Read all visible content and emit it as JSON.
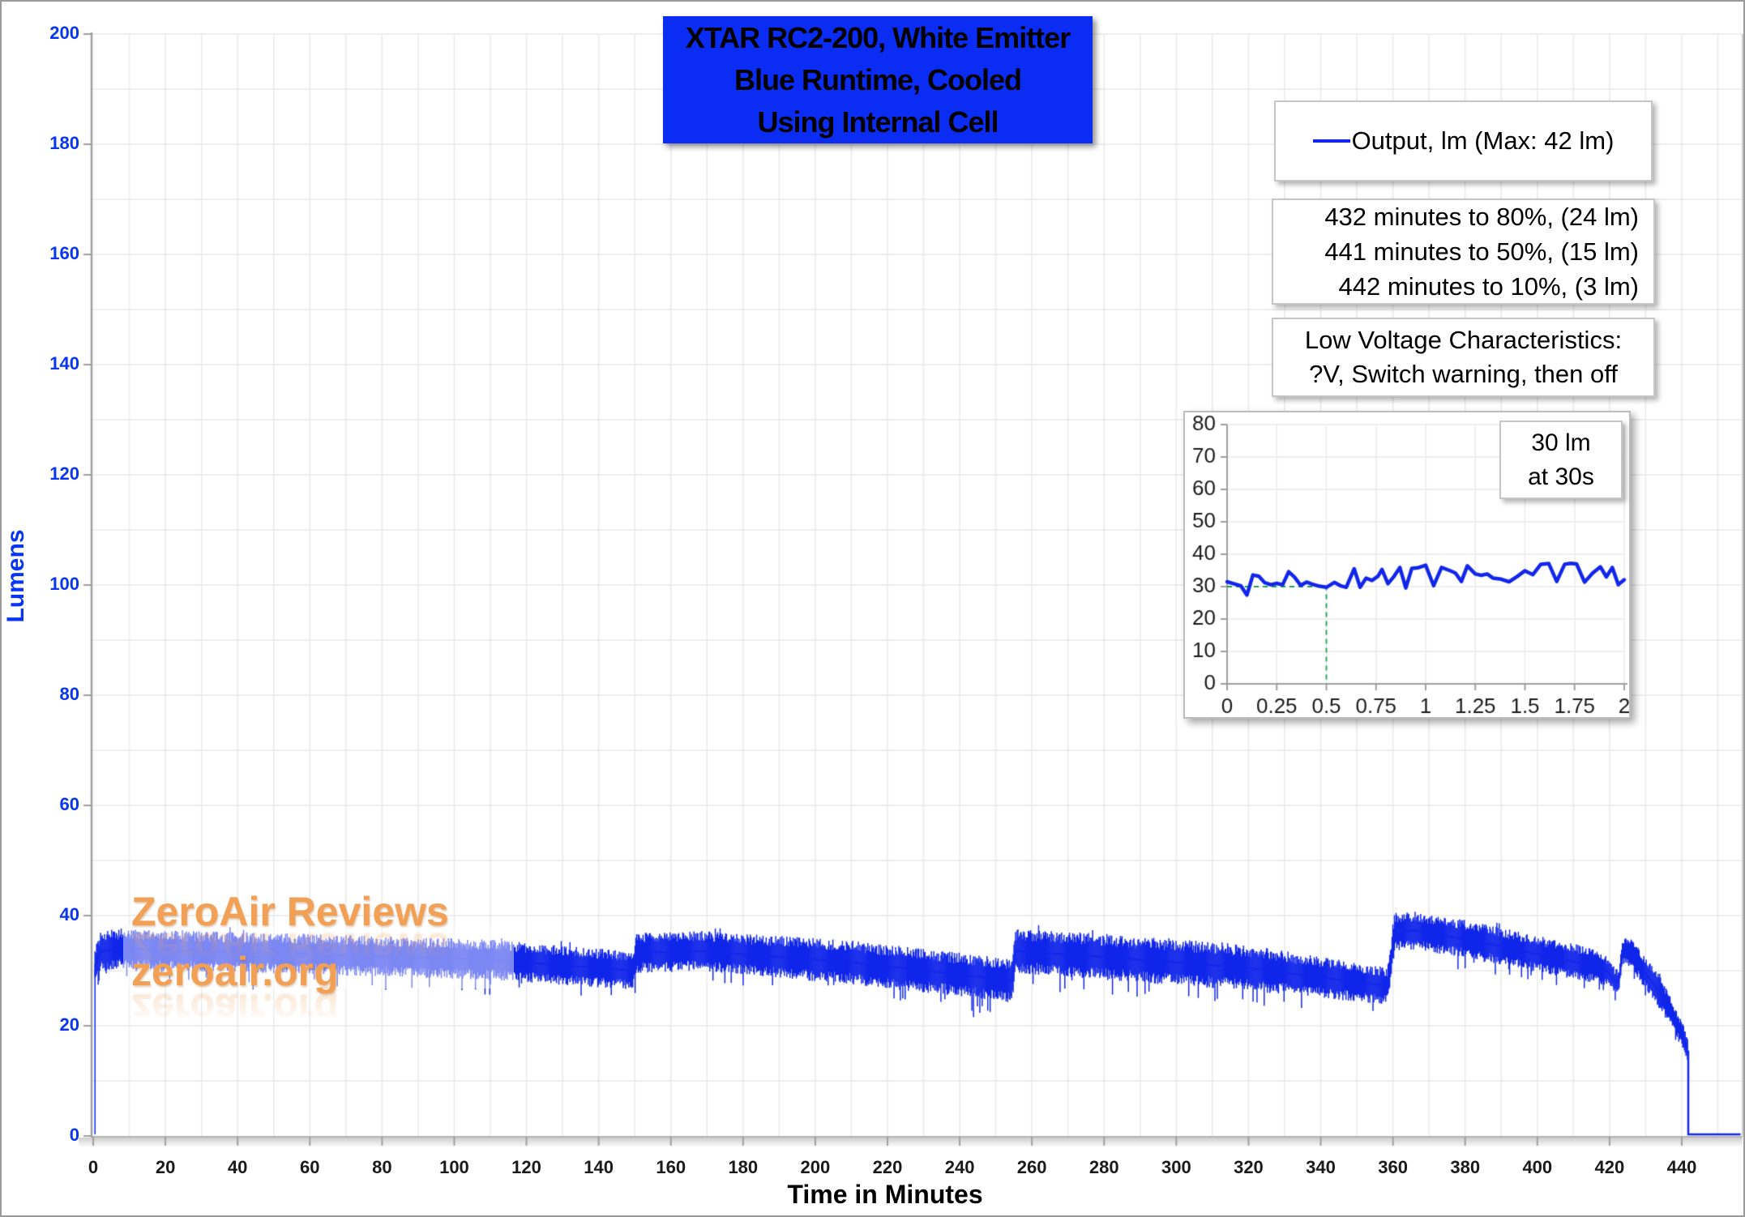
{
  "title": {
    "lines": [
      "XTAR RC2-200, White Emitter",
      "Blue Runtime, Cooled",
      "Using Internal Cell"
    ]
  },
  "legend": {
    "label": "Output, lm (Max: 42 lm)"
  },
  "stats_box": {
    "lines": [
      "432 minutes to 80%, (24 lm)",
      "441 minutes to 50%, (15 lm)",
      "442 minutes to 10%, (3 lm)"
    ]
  },
  "low_voltage_box": {
    "lines": [
      "Low Voltage Characteristics:",
      "?V, Switch warning, then off"
    ]
  },
  "watermark": {
    "line1": "ZeroAir Reviews",
    "line2": "zeroair.org"
  },
  "axes": {
    "y_title": "Lumens",
    "x_title": "Time in Minutes",
    "y_ticks": [
      0,
      20,
      40,
      60,
      80,
      100,
      120,
      140,
      160,
      180,
      200
    ],
    "x_ticks": [
      0,
      20,
      40,
      60,
      80,
      100,
      120,
      140,
      160,
      180,
      200,
      220,
      240,
      260,
      280,
      300,
      320,
      340,
      360,
      380,
      400,
      420,
      440
    ]
  },
  "inset_note": {
    "lines": [
      "30 lm",
      "at 30s"
    ]
  },
  "colors": {
    "line_blue": "#1126ea",
    "axis_label_blue": "#0835f2",
    "title_bg": "#0b2cf2",
    "watermark_orange": "#f1a055",
    "green_dash": "#17a24d",
    "grid": "#e9e9e9",
    "axis_gray": "#9f9f9f",
    "frame_gray": "#c9c9c9"
  },
  "chart_data": {
    "type": "line",
    "title": "XTAR RC2-200, White Emitter Blue Runtime, Cooled Using Internal Cell",
    "xlabel": "Time in Minutes",
    "ylabel": "Lumens",
    "xlim": [
      0,
      456
    ],
    "ylim": [
      0,
      200
    ],
    "x_tick_step": 20,
    "y_tick_step": 20,
    "grid": true,
    "legend_position": "upper right",
    "series_name": "Output, lm (Max: 42 lm)",
    "max_lm": 42,
    "milestones": [
      {
        "minutes": 432,
        "percent": 80,
        "lm": 24
      },
      {
        "minutes": 441,
        "percent": 50,
        "lm": 15
      },
      {
        "minutes": 442,
        "percent": 10,
        "lm": 3
      }
    ],
    "main_series": {
      "description": "noisy output band; keyframes are [minutes, lumens_center, noise_halfwidth_lm]",
      "noise_seed": 42,
      "rise_t": 0.5,
      "rise_to": 31,
      "drop_t": 441.8,
      "drop_from": 15.5,
      "zero_tail_end": 456.3,
      "envelope_keyframes": [
        [
          0.5,
          31,
          3
        ],
        [
          2,
          33.5,
          3.5
        ],
        [
          8,
          34,
          3.5
        ],
        [
          30,
          33.5,
          3.5
        ],
        [
          60,
          33,
          3.5
        ],
        [
          110,
          32,
          3.5
        ],
        [
          149.5,
          30,
          3.3
        ],
        [
          150.5,
          33.2,
          3.5
        ],
        [
          168,
          33.6,
          3.5
        ],
        [
          210,
          31.5,
          3.8
        ],
        [
          254.5,
          28.2,
          3.8
        ],
        [
          255.5,
          33.6,
          3.8
        ],
        [
          280,
          32.5,
          4
        ],
        [
          320,
          30.5,
          4
        ],
        [
          358.5,
          27.2,
          3.2
        ],
        [
          360.5,
          37,
          3.3
        ],
        [
          366,
          37.3,
          3.3
        ],
        [
          382,
          35.5,
          3.3
        ],
        [
          400,
          33,
          3.2
        ],
        [
          415,
          31,
          3
        ],
        [
          419.5,
          29.8,
          2.6
        ],
        [
          421.5,
          28.2,
          2.2
        ],
        [
          422.6,
          28,
          2
        ],
        [
          423.6,
          33.8,
          2.4
        ],
        [
          426,
          33.2,
          2.6
        ],
        [
          430,
          29.5,
          2.8
        ],
        [
          434,
          26,
          2.8
        ],
        [
          437,
          22.5,
          2.6
        ],
        [
          440,
          18.5,
          2.4
        ],
        [
          441.8,
          15.5,
          2.2
        ]
      ]
    },
    "inset": {
      "type": "line",
      "xlim": [
        0,
        2
      ],
      "ylim": [
        0,
        80
      ],
      "y_ticks": [
        0,
        10,
        20,
        30,
        40,
        50,
        60,
        70,
        80
      ],
      "x_tick_labels": [
        "0",
        "0.25",
        "0.5",
        "0.75",
        "1",
        "1.25",
        "1.5",
        "1.75",
        "2"
      ],
      "annotation": "30 lm at 30s",
      "target_point": {
        "x": 0.5,
        "y": 30
      },
      "points": [
        [
          0,
          31.5
        ],
        [
          0.04,
          30.8
        ],
        [
          0.07,
          30.2
        ],
        [
          0.1,
          27.4
        ],
        [
          0.13,
          33.6
        ],
        [
          0.16,
          33.2
        ],
        [
          0.19,
          31.2
        ],
        [
          0.22,
          30.6
        ],
        [
          0.25,
          31.0
        ],
        [
          0.28,
          30.6
        ],
        [
          0.31,
          34.6
        ],
        [
          0.34,
          32.9
        ],
        [
          0.37,
          30.4
        ],
        [
          0.4,
          31.4
        ],
        [
          0.43,
          30.7
        ],
        [
          0.46,
          30.2
        ],
        [
          0.5,
          29.8
        ],
        [
          0.54,
          31.3
        ],
        [
          0.57,
          30.3
        ],
        [
          0.6,
          29.8
        ],
        [
          0.64,
          35.5
        ],
        [
          0.67,
          29.8
        ],
        [
          0.7,
          32.6
        ],
        [
          0.73,
          31.9
        ],
        [
          0.76,
          33.2
        ],
        [
          0.78,
          35.3
        ],
        [
          0.81,
          30.9
        ],
        [
          0.84,
          33.1
        ],
        [
          0.87,
          35.9
        ],
        [
          0.9,
          29.6
        ],
        [
          0.93,
          35.6
        ],
        [
          0.96,
          35.8
        ],
        [
          1.0,
          36.6
        ],
        [
          1.04,
          30.3
        ],
        [
          1.08,
          35.9
        ],
        [
          1.12,
          35.0
        ],
        [
          1.15,
          34.2
        ],
        [
          1.18,
          31.6
        ],
        [
          1.21,
          36.4
        ],
        [
          1.25,
          33.9
        ],
        [
          1.28,
          33.5
        ],
        [
          1.31,
          33.9
        ],
        [
          1.34,
          32.6
        ],
        [
          1.38,
          32.3
        ],
        [
          1.42,
          31.5
        ],
        [
          1.46,
          33.1
        ],
        [
          1.5,
          34.9
        ],
        [
          1.54,
          33.7
        ],
        [
          1.58,
          36.9
        ],
        [
          1.62,
          37.1
        ],
        [
          1.66,
          31.6
        ],
        [
          1.7,
          36.9
        ],
        [
          1.73,
          37.2
        ],
        [
          1.76,
          37.0
        ],
        [
          1.8,
          31.4
        ],
        [
          1.84,
          34.1
        ],
        [
          1.88,
          36.1
        ],
        [
          1.91,
          33.0
        ],
        [
          1.94,
          35.9
        ],
        [
          1.97,
          30.6
        ],
        [
          2.0,
          32.1
        ]
      ]
    }
  }
}
